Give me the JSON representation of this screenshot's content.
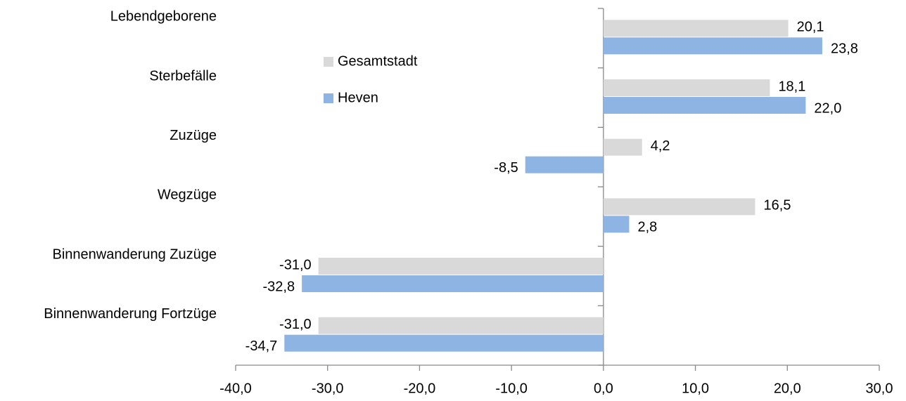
{
  "chart_data": {
    "type": "hbar",
    "categories": [
      "Lebendgeborene",
      "Sterbefälle",
      "Zuzüge",
      "Wegzüge",
      "Binnenwanderung Zuzüge",
      "Binnenwanderung Fortzüge"
    ],
    "series": [
      {
        "name": "Gesamtstadt",
        "color": "#d9d9d9",
        "values": [
          20.1,
          18.1,
          4.2,
          16.5,
          -31.0,
          -31.0
        ],
        "value_labels": [
          "20,1",
          "18,1",
          "4,2",
          "16,5",
          "-31,0",
          "-31,0"
        ]
      },
      {
        "name": "Heven",
        "color": "#8eb4e3",
        "values": [
          23.8,
          22.0,
          -8.5,
          2.8,
          -32.8,
          -34.7
        ],
        "value_labels": [
          "23,8",
          "22,0",
          "-8,5",
          "2,8",
          "-32,8",
          "-34,7"
        ]
      }
    ],
    "xlim": [
      -40,
      30
    ],
    "xticks": [
      {
        "value": -40,
        "label": "-40,0"
      },
      {
        "value": -30,
        "label": "-30,0"
      },
      {
        "value": -20,
        "label": "-20,0"
      },
      {
        "value": -10,
        "label": "-10,0"
      },
      {
        "value": 0,
        "label": "0,0"
      },
      {
        "value": 10,
        "label": "10,0"
      },
      {
        "value": 20,
        "label": "20,0"
      },
      {
        "value": 30,
        "label": "30,0"
      }
    ],
    "legend": "upper-left"
  }
}
